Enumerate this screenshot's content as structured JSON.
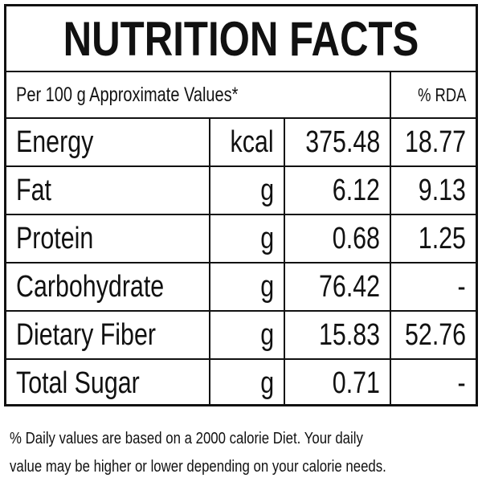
{
  "header": {
    "title": "NUTRITION FACTS"
  },
  "table": {
    "header": [
      "Per 100 g Approximate Values*",
      "% RDA"
    ],
    "rows": [
      [
        "Energy",
        "kcal",
        "375.48",
        "18.77"
      ],
      [
        "Fat",
        "g",
        "6.12",
        "9.13"
      ],
      [
        "Protein",
        "g",
        "0.68",
        "1.25"
      ],
      [
        "Carbohydrate",
        "g",
        "76.42",
        "-"
      ],
      [
        "Dietary Fiber",
        "g",
        "15.83",
        "52.76"
      ],
      [
        "Total Sugar",
        "g",
        "0.71",
        "-"
      ]
    ]
  },
  "footer": [
    "% Daily values are based on a 2000 calorie Diet. Your daily",
    "value may be higher or lower depending on your calorie needs."
  ]
}
